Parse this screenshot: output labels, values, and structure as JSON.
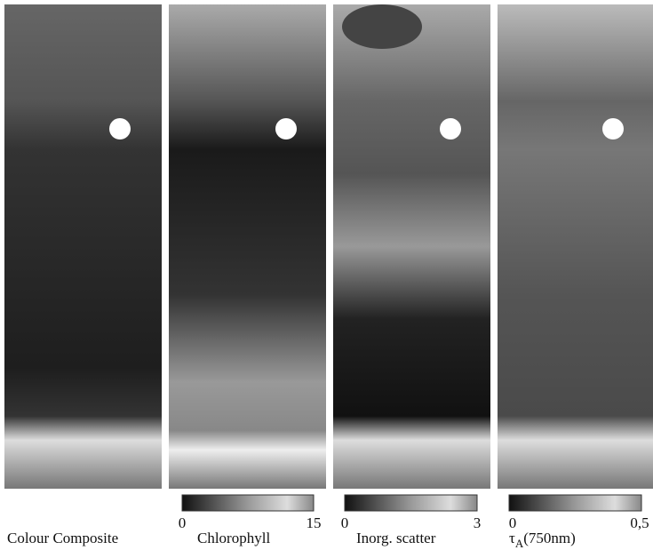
{
  "panels": [
    {
      "label": "Colour Composite"
    },
    {
      "label": "Chlorophyll",
      "colorbar": {
        "min": "0",
        "max": "15"
      }
    },
    {
      "label": "Inorg. scatter",
      "colorbar": {
        "min": "0",
        "max": "3"
      }
    },
    {
      "label": {
        "symbol": "τ",
        "subscript": "A",
        "text": "(750nm)"
      },
      "colorbar": {
        "min": "0",
        "max": "0,5"
      }
    }
  ]
}
